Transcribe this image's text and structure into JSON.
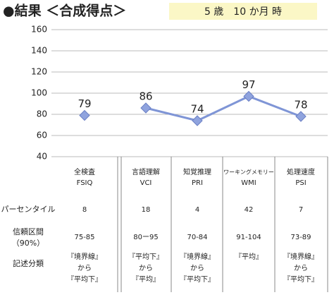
{
  "header": {
    "title": "●結果 ＜合成得点＞",
    "age": "5 歳　10 か月 時"
  },
  "chart_data": {
    "type": "line",
    "categories": [
      "全検査",
      "言語理解",
      "知覚推理",
      "ワーキングメモリー",
      "処理速度"
    ],
    "category_codes": [
      "FSIQ",
      "VCI",
      "PRI",
      "WMI",
      "PSI"
    ],
    "series": [
      {
        "color": "#7f95d6",
        "values": [
          79,
          null,
          null,
          null,
          null
        ]
      },
      {
        "color": "#7f95d6",
        "values": [
          null,
          86,
          74,
          97,
          78
        ]
      }
    ],
    "ylim": [
      40,
      160
    ],
    "yticks": [
      40,
      60,
      80,
      100,
      120,
      140,
      160
    ],
    "grid": true
  },
  "table": {
    "row_labels": [
      "パーセンタイル",
      "信頼区間",
      "（90%）",
      "記述分類"
    ],
    "percentile": [
      8,
      18,
      4,
      42,
      7
    ],
    "confidence_interval": [
      "75-85",
      "80ー95",
      "70-84",
      "91-104",
      "73-89"
    ],
    "classification": [
      [
        "『境界線』",
        "から",
        "『平均下』"
      ],
      [
        "『平均下』",
        "から",
        "『平均』"
      ],
      [
        "『境界線』",
        "から",
        "『平均下』"
      ],
      [
        "『平均』"
      ],
      [
        "『境界線』",
        "から",
        "『平均下』"
      ]
    ]
  }
}
